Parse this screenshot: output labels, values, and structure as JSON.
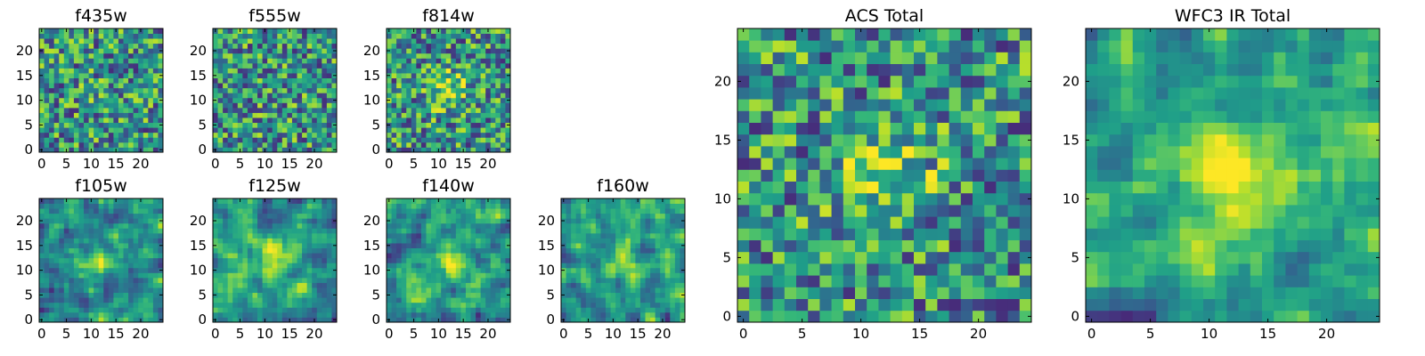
{
  "chart_data": [
    {
      "title": "f435w",
      "type": "heatmap",
      "colormap": "viridis",
      "grid_size": 25,
      "xlim": [
        0,
        24
      ],
      "ylim": [
        0,
        24
      ],
      "xticks": [
        "0",
        "5",
        "10",
        "15",
        "20"
      ],
      "yticks": [
        "0",
        "5",
        "10",
        "15",
        "20"
      ],
      "grid": false,
      "legend": "none",
      "values": "pixel noise, no clear source"
    },
    {
      "title": "f555w",
      "type": "heatmap",
      "colormap": "viridis",
      "grid_size": 25,
      "xlim": [
        0,
        24
      ],
      "ylim": [
        0,
        24
      ],
      "xticks": [
        "0",
        "5",
        "10",
        "15",
        "20"
      ],
      "yticks": [
        "0",
        "5",
        "10",
        "15",
        "20"
      ],
      "grid": false,
      "legend": "none",
      "values": "pixel noise, no clear source"
    },
    {
      "title": "f814w",
      "type": "heatmap",
      "colormap": "viridis",
      "grid_size": 25,
      "xlim": [
        0,
        24
      ],
      "ylim": [
        0,
        24
      ],
      "xticks": [
        "0",
        "5",
        "10",
        "15",
        "20"
      ],
      "yticks": [
        "0",
        "5",
        "10",
        "15",
        "20"
      ],
      "grid": false,
      "legend": "none",
      "values": "pixel noise with faint bright blob near (12, 12)"
    },
    {
      "title": "f105w",
      "type": "heatmap",
      "colormap": "viridis",
      "grid_size": 25,
      "xlim": [
        0,
        24
      ],
      "ylim": [
        0,
        24
      ],
      "xticks": [
        "0",
        "5",
        "10",
        "15",
        "20"
      ],
      "yticks": [
        "0",
        "5",
        "10",
        "15",
        "20"
      ],
      "grid": false,
      "legend": "none",
      "values": "smoothed noise with bright source near (12, 12)"
    },
    {
      "title": "f125w",
      "type": "heatmap",
      "colormap": "viridis",
      "grid_size": 25,
      "xlim": [
        0,
        24
      ],
      "ylim": [
        0,
        24
      ],
      "xticks": [
        "0",
        "5",
        "10",
        "15",
        "20"
      ],
      "yticks": [
        "0",
        "5",
        "10",
        "15",
        "20"
      ],
      "grid": false,
      "legend": "none",
      "values": "smoothed noise with bright source near (12, 12)"
    },
    {
      "title": "f140w",
      "type": "heatmap",
      "colormap": "viridis",
      "grid_size": 25,
      "xlim": [
        0,
        24
      ],
      "ylim": [
        0,
        24
      ],
      "xticks": [
        "0",
        "5",
        "10",
        "15",
        "20"
      ],
      "yticks": [
        "0",
        "5",
        "10",
        "15",
        "20"
      ],
      "grid": false,
      "legend": "none",
      "values": "smoothed noise with bright source near (12, 12)"
    },
    {
      "title": "f160w",
      "type": "heatmap",
      "colormap": "viridis",
      "grid_size": 25,
      "xlim": [
        0,
        24
      ],
      "ylim": [
        0,
        24
      ],
      "xticks": [
        "0",
        "5",
        "10",
        "15",
        "20"
      ],
      "yticks": [
        "0",
        "5",
        "10",
        "15",
        "20"
      ],
      "grid": false,
      "legend": "none",
      "values": "smoothed noise with bright source near (12, 12)"
    },
    {
      "title": "ACS Total",
      "type": "heatmap",
      "colormap": "viridis",
      "grid_size": 25,
      "xlim": [
        0,
        24
      ],
      "ylim": [
        0,
        24
      ],
      "xticks": [
        "0",
        "5",
        "10",
        "15",
        "20"
      ],
      "yticks": [
        "0",
        "5",
        "10",
        "15",
        "20"
      ],
      "grid": false,
      "legend": "none",
      "values": "sum of ACS bands; bright source near (12, 12)"
    },
    {
      "title": "WFC3 IR Total",
      "type": "heatmap",
      "colormap": "viridis",
      "grid_size": 25,
      "xlim": [
        0,
        24
      ],
      "ylim": [
        0,
        24
      ],
      "xticks": [
        "0",
        "5",
        "10",
        "15",
        "20"
      ],
      "yticks": [
        "0",
        "5",
        "10",
        "15",
        "20"
      ],
      "grid": false,
      "legend": "none",
      "values": "sum of IR bands; bright source near (12, 12)"
    }
  ]
}
